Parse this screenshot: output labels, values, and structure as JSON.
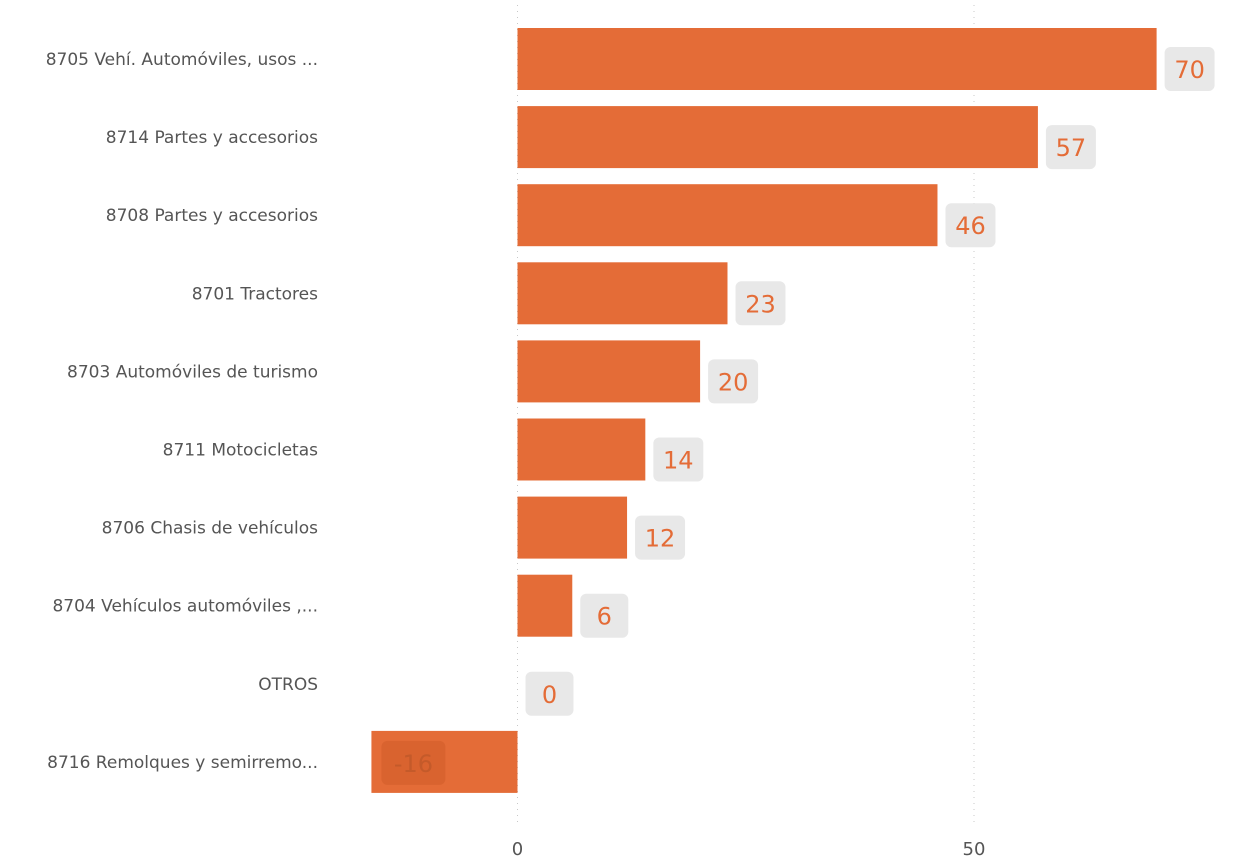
{
  "chart_data": {
    "type": "bar",
    "orientation": "horizontal",
    "categories": [
      "8705 Vehí. Automóviles, usos ...",
      "8714 Partes y accesorios",
      "8708 Partes y accesorios",
      "8701 Tractores",
      "8703 Automóviles de turismo",
      "8711 Motocicletas",
      "8706 Chasis de vehículos",
      "8704 Vehículos automóviles ,...",
      "OTROS",
      "8716 Remolques y semirremo..."
    ],
    "values": [
      70,
      57,
      46,
      23,
      20,
      14,
      12,
      6,
      0,
      -16
    ],
    "data_labels": [
      "70",
      "57",
      "46",
      "23",
      "20",
      "14",
      "12",
      "6",
      "0",
      "-16"
    ],
    "xlim": [
      -16,
      77
    ],
    "xticks": [
      0,
      50
    ],
    "xtick_labels": [
      "0",
      "50"
    ],
    "grid": true,
    "bar_color": "#e46c37",
    "label_bg_color": "#e8e8e8",
    "label_text_color": "#e46c37",
    "title": "",
    "xlabel": "",
    "ylabel": ""
  }
}
